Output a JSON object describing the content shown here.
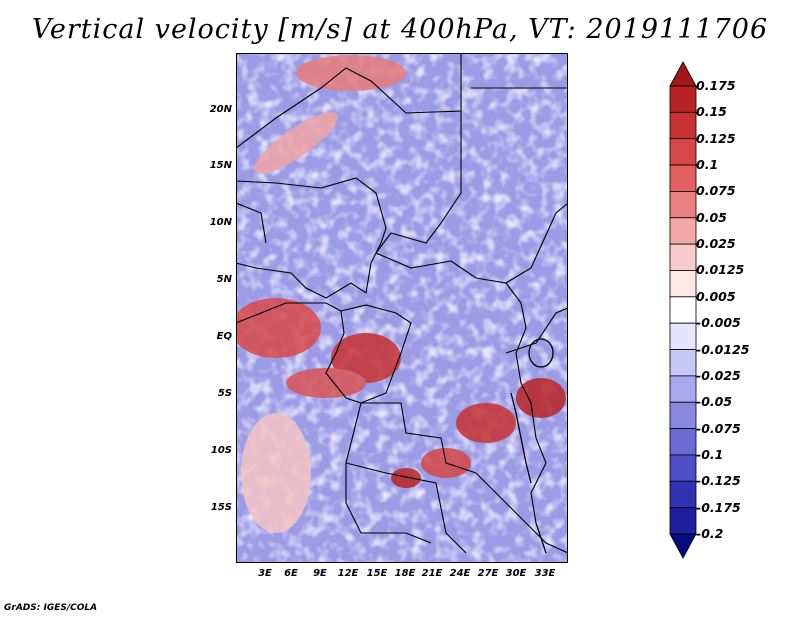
{
  "title": "Vertical velocity [m/s] at 400hPa, VT: 2019111706",
  "credit": "GrADS: IGES/COLA",
  "map": {
    "lat_labels": [
      "20N",
      "15N",
      "10N",
      "5N",
      "EQ",
      "5S",
      "10S",
      "15S"
    ],
    "lon_labels": [
      "3E",
      "6E",
      "9E",
      "12E",
      "15E",
      "18E",
      "21E",
      "24E",
      "27E",
      "30E",
      "33E"
    ]
  },
  "colorbar": {
    "levels": [
      "0.175",
      "0.15",
      "0.125",
      "0.1",
      "0.075",
      "0.05",
      "0.025",
      "0.0125",
      "0.005",
      "-0.005",
      "-0.0125",
      "-0.025",
      "-0.05",
      "-0.075",
      "-0.1",
      "-0.125",
      "-0.175",
      "-0.2"
    ],
    "colors": [
      "#a01818",
      "#b82424",
      "#c83232",
      "#d84646",
      "#e26060",
      "#ea8080",
      "#f3a8a8",
      "#f9cccc",
      "#fde8e8",
      "#ffffff",
      "#e6e6fa",
      "#c8c8f4",
      "#a8a8ec",
      "#8888e0",
      "#6a6ad4",
      "#4e4ec8",
      "#3232b4",
      "#1e1ea0",
      "#0a0a80"
    ]
  }
}
